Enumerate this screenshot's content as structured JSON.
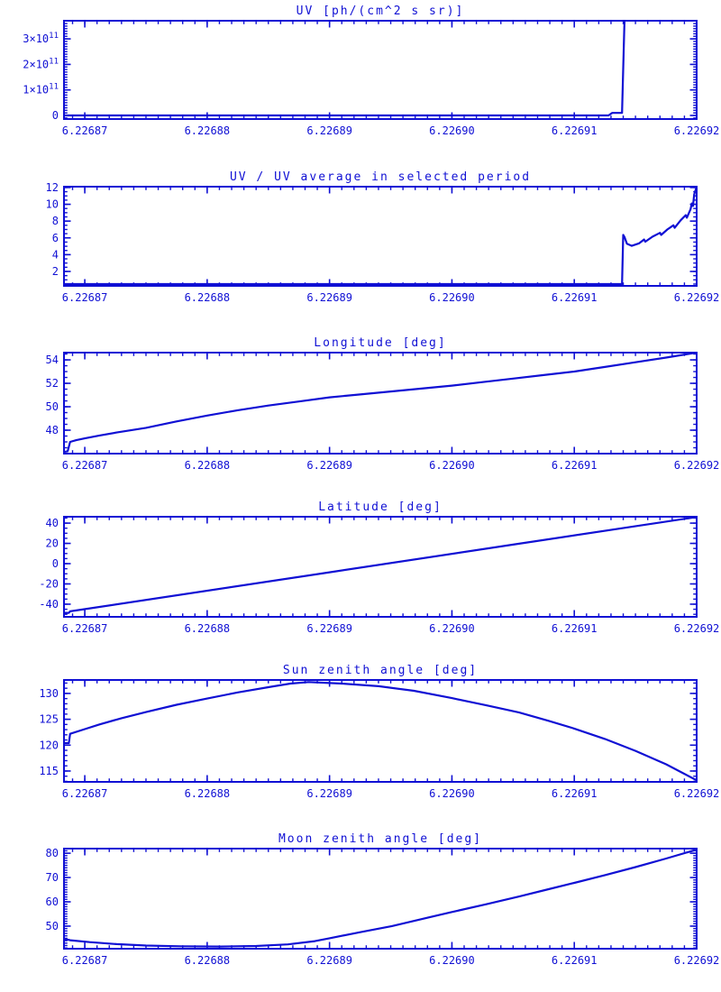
{
  "figure": {
    "background": "#FFFFFF",
    "accent": "#1010D4",
    "description": "Six stacked IDL-style time-series plots"
  },
  "chart_data": [
    {
      "type": "line",
      "title": "UV [ph/(cm^2 s sr)]",
      "xlim": [
        6.2268683,
        6.22692
      ],
      "x_major_ticks": [
        6.22687,
        6.22688,
        6.22689,
        6.2269,
        6.22691,
        6.22692
      ],
      "x_tick_labels": [
        "6.22687",
        "6.22688",
        "6.22689",
        "6.22690",
        "6.22691",
        "6.22692"
      ],
      "x_minor_step": 1e-06,
      "ylim": [
        -14000000000.0,
        371000000000.0
      ],
      "y_major_ticks": [
        0,
        100000000000.0,
        200000000000.0,
        300000000000.0
      ],
      "y_tick_labels": [
        "0",
        "1×10^11",
        "2×10^11",
        "3×10^11"
      ],
      "y_minor_step": 10000000000.0,
      "series": [
        {
          "name": "uv",
          "points": [
            [
              6.2268683,
              0
            ],
            [
              6.2269128,
              0
            ],
            [
              6.2269131,
              10000000000.0
            ],
            [
              6.2269139,
              10000000000.0
            ],
            [
              6.2269141,
              371000000000.0
            ]
          ]
        }
      ]
    },
    {
      "type": "line",
      "title": "UV / UV average in selected period",
      "xlim": [
        6.2268683,
        6.22692
      ],
      "x_major_ticks": [
        6.22687,
        6.22688,
        6.22689,
        6.2269,
        6.22691,
        6.22692
      ],
      "x_tick_labels": [
        "6.22687",
        "6.22688",
        "6.22689",
        "6.22690",
        "6.22691",
        "6.22692"
      ],
      "x_minor_step": 1e-06,
      "ylim": [
        0.28,
        12.1
      ],
      "y_major_ticks": [
        2,
        4,
        6,
        8,
        10,
        12
      ],
      "y_tick_labels": [
        "2",
        "4",
        "6",
        "8",
        "10",
        "12"
      ],
      "y_minor_step": 0.5,
      "series": [
        {
          "name": "uv_ratio",
          "points": [
            [
              6.2268683,
              0.5
            ],
            [
              6.2269139,
              0.5
            ],
            [
              6.226914,
              6.35
            ],
            [
              6.2269141,
              6.1
            ],
            [
              6.2269143,
              5.3
            ],
            [
              6.2269147,
              5.05
            ],
            [
              6.2269153,
              5.35
            ],
            [
              6.2269157,
              5.8
            ],
            [
              6.2269158,
              5.55
            ],
            [
              6.2269164,
              6.15
            ],
            [
              6.226917,
              6.6
            ],
            [
              6.2269171,
              6.35
            ],
            [
              6.2269176,
              7.0
            ],
            [
              6.2269181,
              7.5
            ],
            [
              6.2269182,
              7.2
            ],
            [
              6.2269187,
              8.1
            ],
            [
              6.2269191,
              8.7
            ],
            [
              6.2269192,
              8.4
            ],
            [
              6.2269195,
              9.4
            ],
            [
              6.2269196,
              10.1
            ],
            [
              6.2269197,
              9.8
            ],
            [
              6.2269198,
              11.2
            ],
            [
              6.22692,
              12.1
            ]
          ]
        }
      ]
    },
    {
      "type": "line",
      "title": "Longitude [deg]",
      "xlim": [
        6.2268683,
        6.22692
      ],
      "x_major_ticks": [
        6.22687,
        6.22688,
        6.22689,
        6.2269,
        6.22691,
        6.22692
      ],
      "x_tick_labels": [
        "6.22687",
        "6.22688",
        "6.22689",
        "6.22690",
        "6.22691",
        "6.22692"
      ],
      "x_minor_step": 1e-06,
      "ylim": [
        46.0,
        54.62
      ],
      "y_major_ticks": [
        48,
        50,
        52,
        54
      ],
      "y_tick_labels": [
        "48",
        "50",
        "52",
        "54"
      ],
      "y_minor_step": 0.5,
      "series": [
        {
          "name": "longitude",
          "points": [
            [
              6.2268683,
              46.15
            ],
            [
              6.2268686,
              46.2
            ],
            [
              6.2268688,
              47.0
            ],
            [
              6.2268693,
              47.15
            ],
            [
              6.22687,
              47.3
            ],
            [
              6.2268712,
              47.55
            ],
            [
              6.2268726,
              47.8
            ],
            [
              6.226875,
              48.2
            ],
            [
              6.2268775,
              48.75
            ],
            [
              6.22688,
              49.25
            ],
            [
              6.2268825,
              49.7
            ],
            [
              6.226885,
              50.1
            ],
            [
              6.2268875,
              50.45
            ],
            [
              6.22689,
              50.8
            ],
            [
              6.2268925,
              51.05
            ],
            [
              6.226895,
              51.3
            ],
            [
              6.2268975,
              51.55
            ],
            [
              6.2269,
              51.8
            ],
            [
              6.2269025,
              52.1
            ],
            [
              6.226905,
              52.4
            ],
            [
              6.2269075,
              52.7
            ],
            [
              6.22691,
              53.0
            ],
            [
              6.2269125,
              53.4
            ],
            [
              6.226915,
              53.8
            ],
            [
              6.2269175,
              54.2
            ],
            [
              6.22692,
              54.62
            ]
          ]
        }
      ]
    },
    {
      "type": "line",
      "title": "Latitude [deg]",
      "xlim": [
        6.2268683,
        6.22692
      ],
      "x_major_ticks": [
        6.22687,
        6.22688,
        6.22689,
        6.2269,
        6.22691,
        6.22692
      ],
      "x_tick_labels": [
        "6.22687",
        "6.22688",
        "6.22689",
        "6.22690",
        "6.22691",
        "6.22692"
      ],
      "x_minor_step": 1e-06,
      "ylim": [
        -52.5,
        46.3
      ],
      "y_major_ticks": [
        -40,
        -20,
        0,
        20,
        40
      ],
      "y_tick_labels": [
        "-40",
        "-20",
        "0",
        "20",
        "40"
      ],
      "y_minor_step": 5,
      "series": [
        {
          "name": "latitude",
          "points": [
            [
              6.2268683,
              -48.6
            ],
            [
              6.2268687,
              -48.6
            ],
            [
              6.2268688,
              -47.1
            ],
            [
              6.22689,
              -8.5
            ],
            [
              6.226905,
              18.8
            ],
            [
              6.22692,
              46.0
            ]
          ]
        }
      ]
    },
    {
      "type": "line",
      "title": "Sun zenith angle [deg]",
      "xlim": [
        6.2268683,
        6.22692
      ],
      "x_major_ticks": [
        6.22687,
        6.22688,
        6.22689,
        6.2269,
        6.22691,
        6.22692
      ],
      "x_tick_labels": [
        "6.22687",
        "6.22688",
        "6.22689",
        "6.22690",
        "6.22691",
        "6.22692"
      ],
      "x_minor_step": 1e-06,
      "ylim": [
        112.9,
        132.6
      ],
      "y_major_ticks": [
        115,
        120,
        125,
        130
      ],
      "y_tick_labels": [
        "115",
        "120",
        "125",
        "130"
      ],
      "y_minor_step": 1,
      "series": [
        {
          "name": "sun_zenith",
          "points": [
            [
              6.2268683,
              120.4
            ],
            [
              6.2268687,
              120.4
            ],
            [
              6.2268688,
              122.2
            ],
            [
              6.22687,
              123.1
            ],
            [
              6.2268712,
              124.0
            ],
            [
              6.226873,
              125.2
            ],
            [
              6.226875,
              126.4
            ],
            [
              6.2268775,
              127.8
            ],
            [
              6.22688,
              129.0
            ],
            [
              6.2268825,
              130.2
            ],
            [
              6.226885,
              131.2
            ],
            [
              6.2268868,
              131.9
            ],
            [
              6.2268883,
              132.2
            ],
            [
              6.226891,
              131.9
            ],
            [
              6.226894,
              131.4
            ],
            [
              6.2268969,
              130.5
            ],
            [
              6.2269,
              129.1
            ],
            [
              6.2269028,
              127.7
            ],
            [
              6.2269055,
              126.3
            ],
            [
              6.2269079,
              124.7
            ],
            [
              6.22691,
              123.2
            ],
            [
              6.2269125,
              121.2
            ],
            [
              6.226915,
              118.9
            ],
            [
              6.2269175,
              116.3
            ],
            [
              6.22692,
              113.2
            ]
          ]
        }
      ]
    },
    {
      "type": "line",
      "title": "Moon zenith angle [deg]",
      "xlim": [
        6.2268683,
        6.22692
      ],
      "x_major_ticks": [
        6.22687,
        6.22688,
        6.22689,
        6.2269,
        6.22691,
        6.22692
      ],
      "x_tick_labels": [
        "6.22687",
        "6.22688",
        "6.22689",
        "6.22690",
        "6.22691",
        "6.22692"
      ],
      "x_minor_step": 1e-06,
      "ylim": [
        40.7,
        81.9
      ],
      "y_major_ticks": [
        50,
        60,
        70,
        80
      ],
      "y_tick_labels": [
        "50",
        "60",
        "70",
        "80"
      ],
      "y_minor_step": 1,
      "series": [
        {
          "name": "moon_zenith",
          "points": [
            [
              6.2268683,
              44.8
            ],
            [
              6.2268688,
              44.2
            ],
            [
              6.2268704,
              43.4
            ],
            [
              6.2268726,
              42.6
            ],
            [
              6.226875,
              42.0
            ],
            [
              6.2268778,
              41.7
            ],
            [
              6.2268811,
              41.6
            ],
            [
              6.226884,
              41.8
            ],
            [
              6.2268866,
              42.5
            ],
            [
              6.2268888,
              43.8
            ],
            [
              6.22689,
              45.0
            ],
            [
              6.2268925,
              47.5
            ],
            [
              6.2268951,
              50.0
            ],
            [
              6.2268976,
              53.0
            ],
            [
              6.2269,
              55.8
            ],
            [
              6.2269028,
              59.0
            ],
            [
              6.2269055,
              62.2
            ],
            [
              6.2269079,
              65.2
            ],
            [
              6.22691,
              67.8
            ],
            [
              6.2269125,
              71.0
            ],
            [
              6.226915,
              74.3
            ],
            [
              6.2269175,
              77.8
            ],
            [
              6.22692,
              81.5
            ]
          ]
        }
      ]
    }
  ]
}
